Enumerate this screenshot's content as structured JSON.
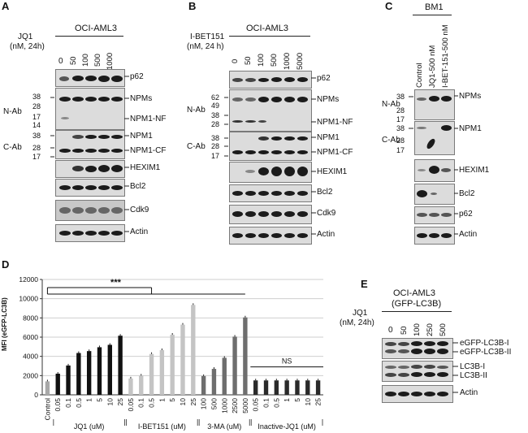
{
  "panels": {
    "A": {
      "letter": "A",
      "cell_line": "OCI-AML3",
      "treatment": "JQ1",
      "treatment_unit": "(nM, 24h)",
      "doses": [
        "0",
        "50",
        "100",
        "500",
        "1000"
      ],
      "mw_markers": [
        "38",
        "28",
        "17",
        "14",
        "38",
        "28",
        "17"
      ],
      "antibody_groups": [
        "N-Ab",
        "C-Ab"
      ],
      "blots": [
        "p62",
        "NPMs",
        "NPM1-NF",
        "NPM1",
        "NPM1-CF",
        "HEXIM1",
        "Bcl2",
        "Cdk9",
        "Actin"
      ]
    },
    "B": {
      "letter": "B",
      "cell_line": "OCI-AML3",
      "treatment": "I-BET151",
      "treatment_unit": "(nM, 24 h)",
      "doses": [
        "0",
        "50",
        "100",
        "500",
        "1000",
        "5000"
      ],
      "mw_markers": [
        "62",
        "49",
        "38",
        "28",
        "38",
        "28",
        "17"
      ],
      "antibody_groups": [
        "N-Ab",
        "C-Ab"
      ],
      "blots": [
        "p62",
        "NPMs",
        "NPM1-NF",
        "NPM1",
        "NPM1-CF",
        "HEXIM1",
        "Bcl2",
        "Cdk9",
        "Actin"
      ]
    },
    "C": {
      "letter": "C",
      "cell_line": "BM1",
      "conditions": [
        "Control",
        "JQ1-500 nM",
        "I-BET-151-500 nM"
      ],
      "mw_markers": [
        "38",
        "28",
        "17",
        "38",
        "28",
        "17"
      ],
      "antibody_groups": [
        "N-Ab",
        "C-Ab"
      ],
      "blots": [
        "NPMs",
        "NPM1",
        "HEXIM1",
        "Bcl2",
        "p62",
        "Actin"
      ]
    },
    "D": {
      "letter": "D",
      "significance_main": "***",
      "significance_inactive": "NS"
    },
    "E": {
      "letter": "E",
      "cell_line": "OCI-AML3",
      "reporter": "(GFP-LC3B)",
      "treatment": "JQ1",
      "treatment_unit": "(nM, 24h)",
      "doses": [
        "0",
        "50",
        "100",
        "250",
        "500"
      ],
      "blots": [
        "eGFP-LC3B-I",
        "eGFP-LC3B-II",
        "LC3B-I",
        "LC3B-II",
        "Actin"
      ]
    }
  },
  "chart_data": {
    "type": "bar",
    "ylabel": "MFI (eGFP-LC3B)",
    "ylim": [
      0,
      12000
    ],
    "yticks": [
      0,
      2000,
      4000,
      6000,
      8000,
      10000,
      12000
    ],
    "ytick_labels": [
      "0",
      "2000",
      "4000",
      "6000",
      "8000",
      "10000",
      "12000"
    ],
    "grid": true,
    "categories": [
      "Control",
      "0.05",
      "0.1",
      "0.5",
      "1",
      "5",
      "10",
      "25",
      "0.05",
      "0.1",
      "0.5",
      "1",
      "5",
      "10",
      "25",
      "100",
      "500",
      "1000",
      "2500",
      "5000",
      "0.05",
      "0.1",
      "0.5",
      "1",
      "5",
      "10",
      "25"
    ],
    "values": [
      1400,
      2200,
      3050,
      4350,
      4550,
      4950,
      5200,
      6150,
      1700,
      2000,
      4250,
      4650,
      6250,
      7300,
      9350,
      1950,
      2700,
      3850,
      6050,
      8050,
      1500,
      1500,
      1500,
      1500,
      1500,
      1500,
      1500
    ],
    "bar_colors": [
      "#a8a8a8",
      "#111111",
      "#111111",
      "#111111",
      "#111111",
      "#111111",
      "#111111",
      "#111111",
      "#c4c4c4",
      "#c4c4c4",
      "#c4c4c4",
      "#c4c4c4",
      "#c4c4c4",
      "#c4c4c4",
      "#c4c4c4",
      "#6e6e6e",
      "#6e6e6e",
      "#6e6e6e",
      "#6e6e6e",
      "#6e6e6e",
      "#2a2a2a",
      "#2a2a2a",
      "#2a2a2a",
      "#2a2a2a",
      "#2a2a2a",
      "#2a2a2a",
      "#2a2a2a"
    ],
    "groups": [
      {
        "name": "JQ1 (uM)",
        "start": 1,
        "end": 7
      },
      {
        "name": "I-BET151 (uM)",
        "start": 8,
        "end": 14
      },
      {
        "name": "3-MA (uM)",
        "start": 15,
        "end": 19
      },
      {
        "name": "Inactive-JQ1 (uM)",
        "start": 20,
        "end": 26
      }
    ]
  }
}
